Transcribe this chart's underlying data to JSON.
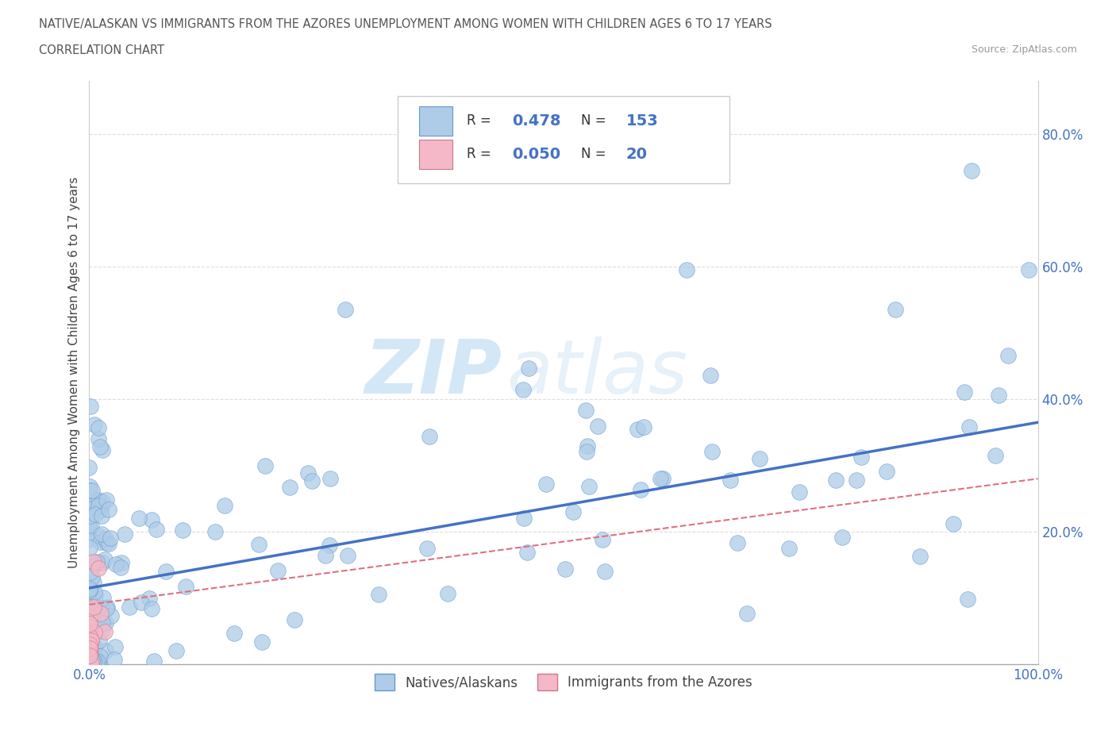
{
  "title_line1": "NATIVE/ALASKAN VS IMMIGRANTS FROM THE AZORES UNEMPLOYMENT AMONG WOMEN WITH CHILDREN AGES 6 TO 17 YEARS",
  "title_line2": "CORRELATION CHART",
  "source_text": "Source: ZipAtlas.com",
  "ylabel": "Unemployment Among Women with Children Ages 6 to 17 years",
  "watermark_zip": "ZIP",
  "watermark_atlas": "atlas",
  "color_native": "#aecce8",
  "color_native_edge": "#6699cc",
  "color_immigrant": "#f4b8c8",
  "color_immigrant_edge": "#cc7788",
  "color_line_native": "#4472c4",
  "color_line_immigrant": "#e07080",
  "background_color": "#ffffff",
  "grid_color": "#dddddd",
  "xlim": [
    0.0,
    1.0
  ],
  "ylim": [
    0.0,
    0.88
  ],
  "yticks": [
    0.2,
    0.4,
    0.6,
    0.8
  ],
  "ytick_labels": [
    "20.0%",
    "40.0%",
    "60.0%",
    "80.0%"
  ],
  "xtick_positions": [
    0.0,
    1.0
  ],
  "xtick_labels": [
    "0.0%",
    "100.0%"
  ],
  "legend_r1": "0.478",
  "legend_n1": "153",
  "legend_r2": "0.050",
  "legend_n2": "20",
  "native_trend_x0": 0.0,
  "native_trend_x1": 1.0,
  "native_trend_y0": 0.115,
  "native_trend_y1": 0.365,
  "immigrant_trend_x0": 0.0,
  "immigrant_trend_x1": 1.0,
  "immigrant_trend_y0": 0.09,
  "immigrant_trend_y1": 0.28
}
